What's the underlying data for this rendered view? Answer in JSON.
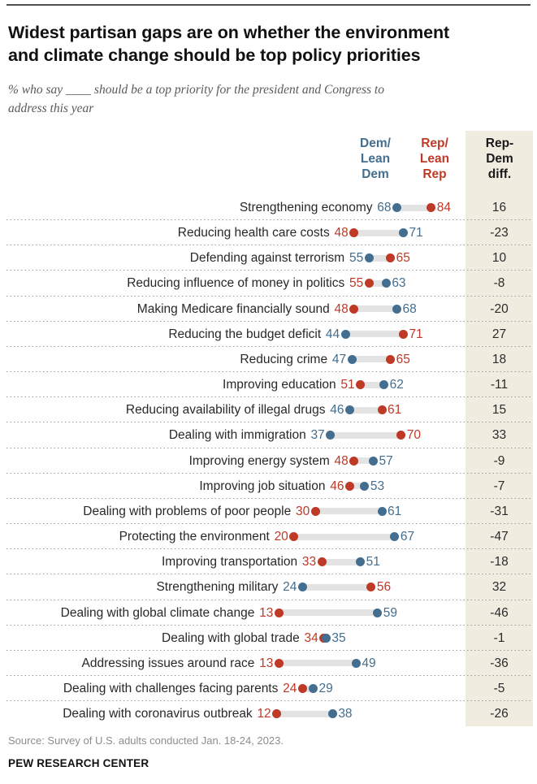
{
  "header": {
    "title": "Widest partisan gaps are on whether the environment\nand climate change should be top policy priorities",
    "subtitle": "% who say ____ should be a top priority for the president and Congress to\naddress this year"
  },
  "columns": {
    "dem_label": "Dem/\nLean\nDem",
    "rep_label": "Rep/\nLean\nRep",
    "diff_label": "Rep-\nDem\ndiff."
  },
  "footer": {
    "source": "Source: Survey of U.S. adults conducted Jan. 18-24, 2023.",
    "brand": "PEW RESEARCH CENTER"
  },
  "colors": {
    "dem": "#436e8f",
    "rep": "#bf3927",
    "connector_bar": "#e3e3e3",
    "diff_band_bg": "#f0ece0",
    "top_rule": "#4f4f51",
    "separator_dots": "#9a9a9a"
  },
  "chart_data": {
    "type": "scatter",
    "variant": "dumbbell-dot-plot",
    "title": "Widest partisan gaps are on whether the environment and climate change should be top policy priorities",
    "subtitle": "% who say ____ should be a top priority for the president and Congress to address this year",
    "xlabel": "",
    "ylabel": "",
    "xlim": [
      0,
      100
    ],
    "grid": false,
    "legend_position": "top-column-headers",
    "categories": [
      "Strengthening economy",
      "Reducing health care costs",
      "Defending against terrorism",
      "Reducing influence of money in politics",
      "Making Medicare financially sound",
      "Reducing the budget deficit",
      "Reducing crime",
      "Improving education",
      "Reducing availability of illegal drugs",
      "Dealing with immigration",
      "Improving energy system",
      "Improving job situation",
      "Dealing with problems of poor people",
      "Protecting the environment",
      "Improving transportation",
      "Strengthening military",
      "Dealing with global climate change",
      "Dealing with global trade",
      "Addressing issues around race",
      "Dealing with challenges facing parents",
      "Dealing with coronavirus outbreak"
    ],
    "series": [
      {
        "name": "Dem/Lean Dem",
        "color": "#436e8f",
        "values": [
          68,
          71,
          55,
          63,
          68,
          44,
          47,
          62,
          46,
          37,
          57,
          53,
          61,
          67,
          51,
          24,
          59,
          35,
          49,
          29,
          38
        ]
      },
      {
        "name": "Rep/Lean Rep",
        "color": "#bf3927",
        "values": [
          84,
          48,
          65,
          55,
          48,
          71,
          65,
          51,
          61,
          70,
          48,
          46,
          30,
          20,
          33,
          56,
          13,
          34,
          13,
          24,
          12
        ]
      }
    ],
    "diff_rep_minus_dem": [
      16,
      -23,
      10,
      -8,
      -20,
      27,
      18,
      -11,
      15,
      33,
      -9,
      -7,
      -31,
      -47,
      -18,
      32,
      -46,
      -1,
      -36,
      -5,
      -26
    ]
  }
}
